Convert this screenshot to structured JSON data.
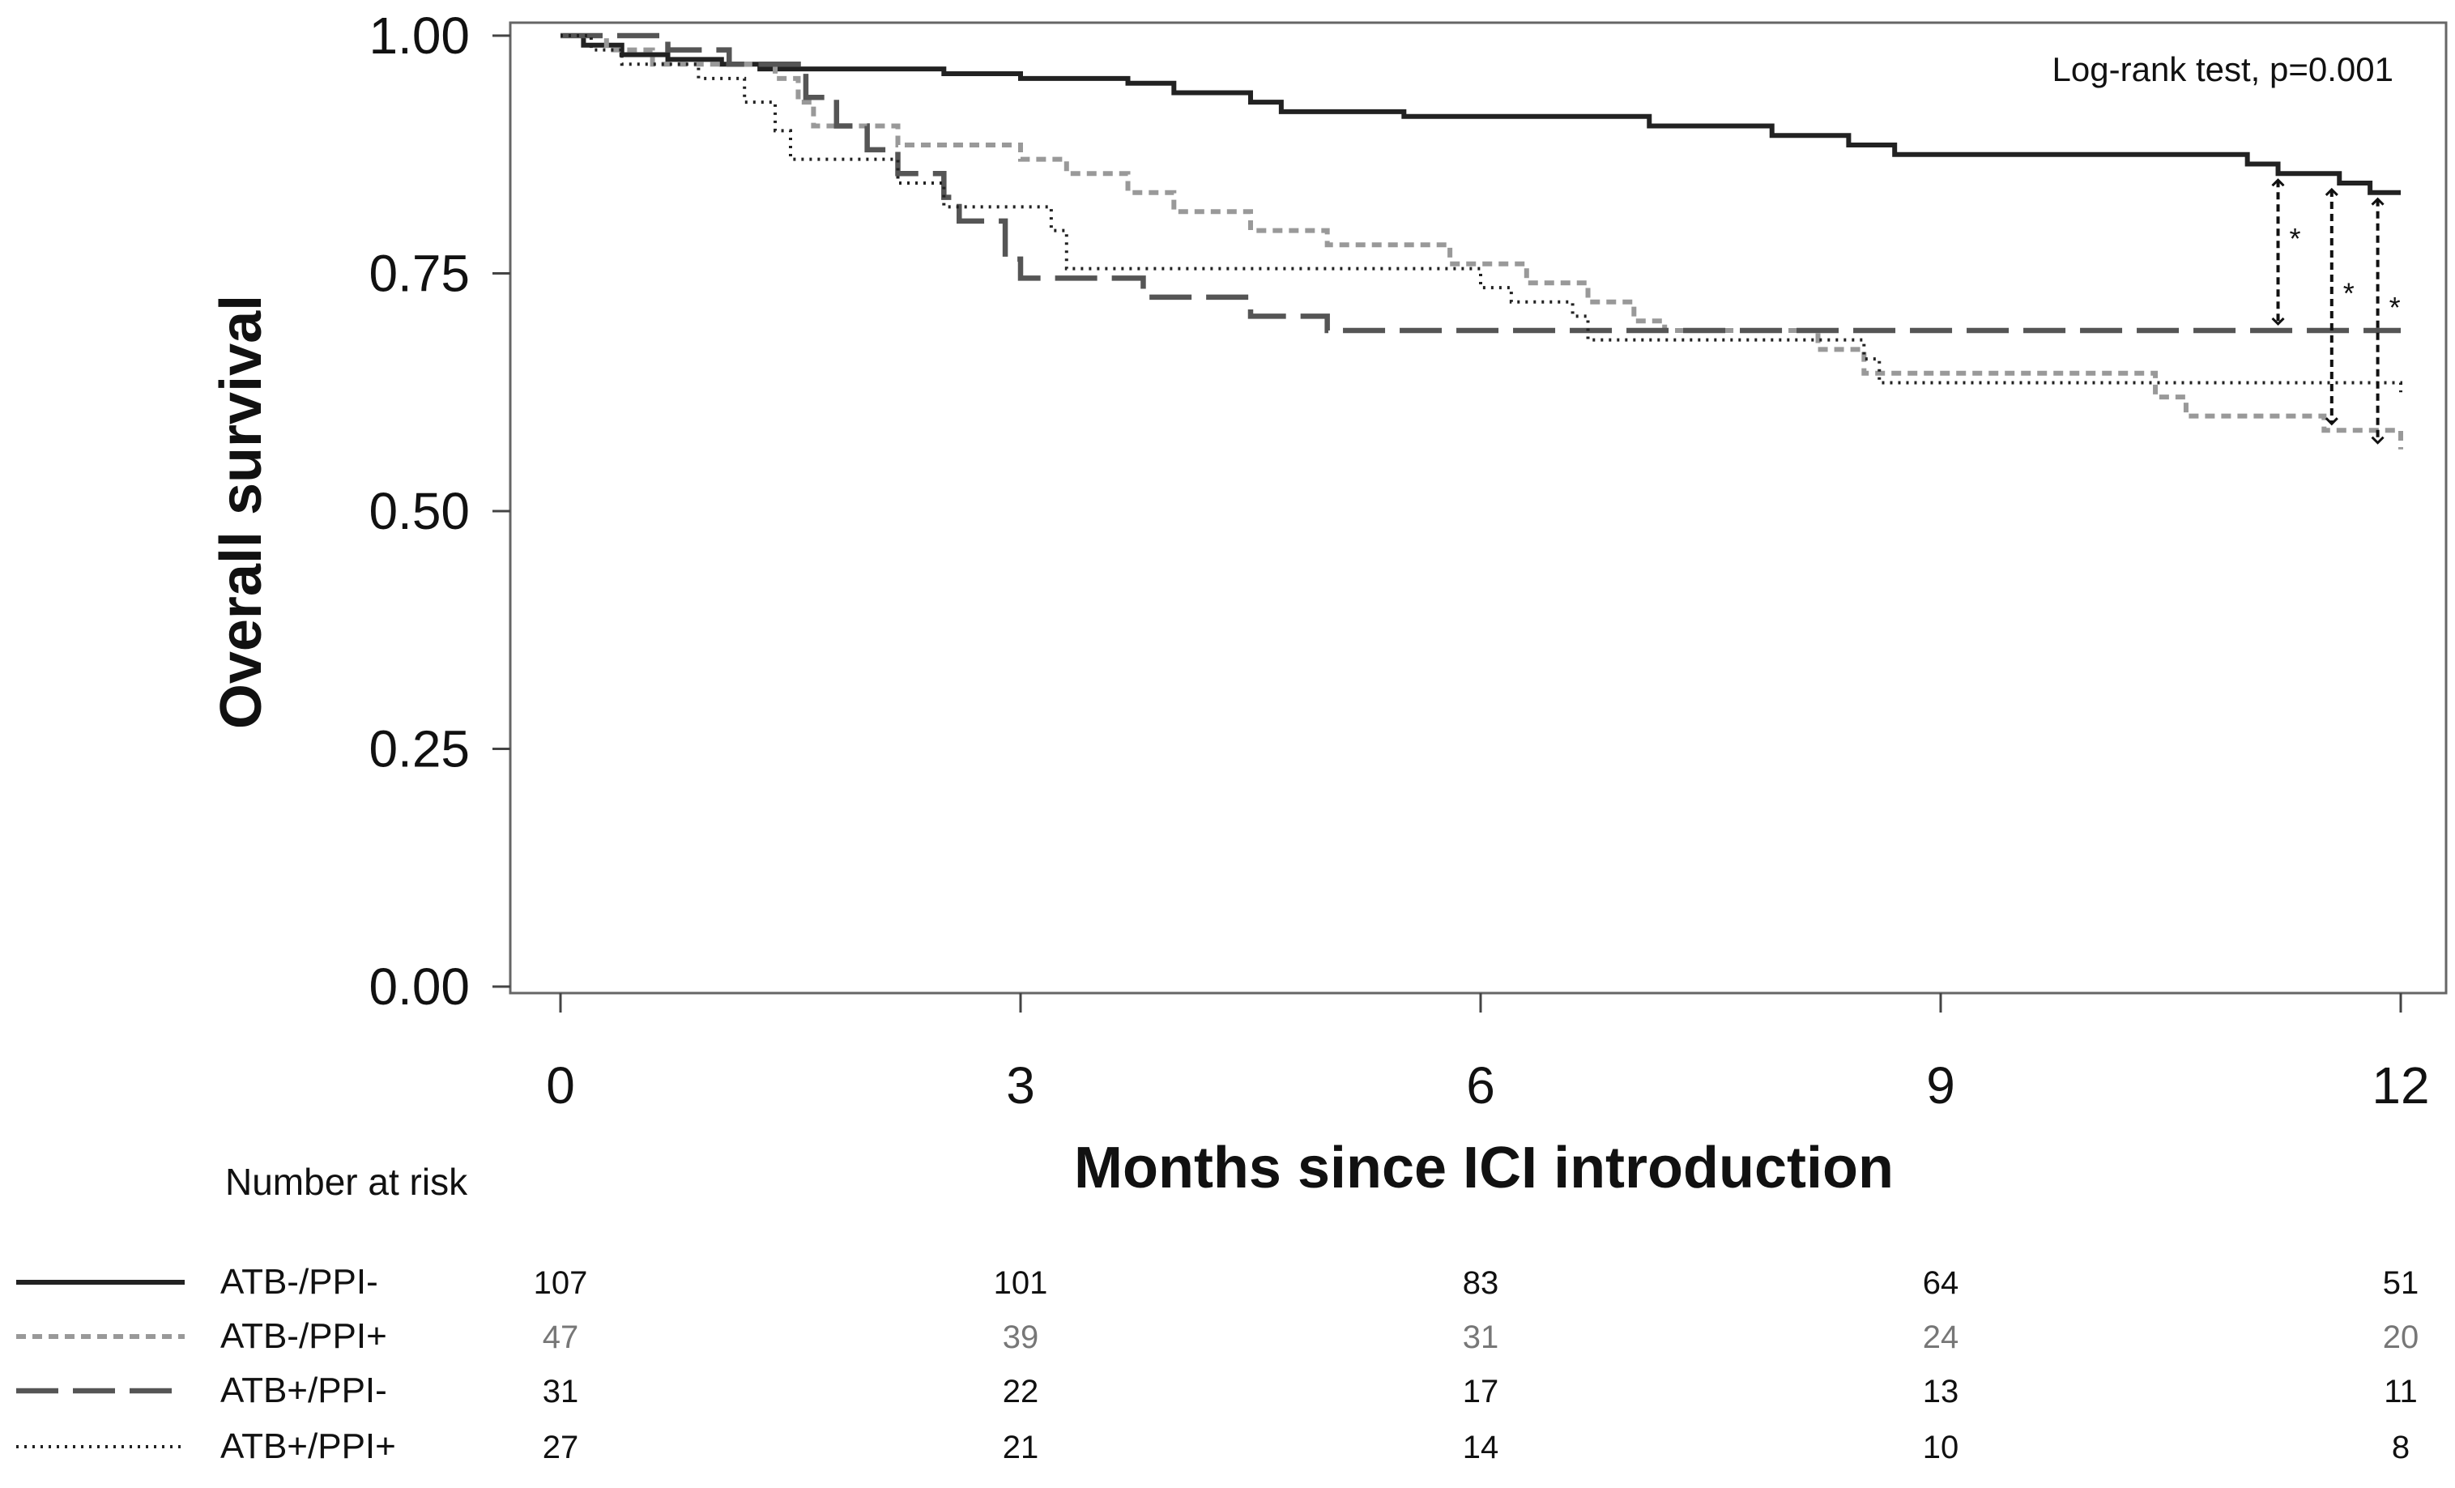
{
  "chart_data": {
    "type": "line",
    "subtype": "kaplan-meier",
    "title": "",
    "xlabel": "Months since ICI introduction",
    "ylabel": "Overall survival",
    "xlim": [
      0,
      12
    ],
    "ylim": [
      0,
      1
    ],
    "x_ticks": [
      "0",
      "3",
      "6",
      "9",
      "12"
    ],
    "y_ticks": [
      "0.00",
      "0.25",
      "0.50",
      "0.75",
      "1.00"
    ],
    "annotation": "Log-rank test, p=0.001",
    "significance_marker": "*",
    "grid": false,
    "series": [
      {
        "name": "ATB-/PPI-",
        "color": "#222222",
        "style": "solid",
        "steps": [
          [
            0,
            1.0
          ],
          [
            0.15,
            0.99
          ],
          [
            0.4,
            0.98
          ],
          [
            0.7,
            0.975
          ],
          [
            1.05,
            0.97
          ],
          [
            1.3,
            0.965
          ],
          [
            2.5,
            0.96
          ],
          [
            3.0,
            0.955
          ],
          [
            3.7,
            0.95
          ],
          [
            4.0,
            0.94
          ],
          [
            4.5,
            0.93
          ],
          [
            4.7,
            0.92
          ],
          [
            5.5,
            0.915
          ],
          [
            7.1,
            0.905
          ],
          [
            7.9,
            0.895
          ],
          [
            8.4,
            0.885
          ],
          [
            8.7,
            0.875
          ],
          [
            11.0,
            0.865
          ],
          [
            11.2,
            0.855
          ],
          [
            11.6,
            0.845
          ],
          [
            11.8,
            0.835
          ],
          [
            12.0,
            0.835
          ]
        ]
      },
      {
        "name": "ATB-/PPI+",
        "color": "#999999",
        "style": "dashed",
        "steps": [
          [
            0,
            1.0
          ],
          [
            0.3,
            0.985
          ],
          [
            0.6,
            0.97
          ],
          [
            1.4,
            0.955
          ],
          [
            1.55,
            0.93
          ],
          [
            1.65,
            0.905
          ],
          [
            2.2,
            0.885
          ],
          [
            3.0,
            0.87
          ],
          [
            3.3,
            0.855
          ],
          [
            3.7,
            0.835
          ],
          [
            4.0,
            0.815
          ],
          [
            4.5,
            0.795
          ],
          [
            5.0,
            0.78
          ],
          [
            5.8,
            0.76
          ],
          [
            6.3,
            0.74
          ],
          [
            6.7,
            0.72
          ],
          [
            7.0,
            0.7
          ],
          [
            7.2,
            0.69
          ],
          [
            8.2,
            0.67
          ],
          [
            8.5,
            0.645
          ],
          [
            10.4,
            0.62
          ],
          [
            10.6,
            0.6
          ],
          [
            11.5,
            0.585
          ],
          [
            12.0,
            0.565
          ]
        ]
      },
      {
        "name": "ATB+/PPI-",
        "color": "#555555",
        "style": "long-dashed",
        "steps": [
          [
            0,
            1.0
          ],
          [
            0.7,
            0.985
          ],
          [
            1.1,
            0.97
          ],
          [
            1.6,
            0.935
          ],
          [
            1.8,
            0.905
          ],
          [
            2.0,
            0.88
          ],
          [
            2.2,
            0.855
          ],
          [
            2.5,
            0.83
          ],
          [
            2.6,
            0.805
          ],
          [
            2.9,
            0.765
          ],
          [
            3.0,
            0.745
          ],
          [
            3.8,
            0.725
          ],
          [
            4.5,
            0.705
          ],
          [
            5.0,
            0.69
          ],
          [
            12.0,
            0.69
          ]
        ]
      },
      {
        "name": "ATB+/PPI+",
        "color": "#222222",
        "style": "dotted",
        "steps": [
          [
            0,
            1.0
          ],
          [
            0.2,
            0.985
          ],
          [
            0.4,
            0.97
          ],
          [
            0.9,
            0.955
          ],
          [
            1.2,
            0.93
          ],
          [
            1.4,
            0.9
          ],
          [
            1.5,
            0.87
          ],
          [
            2.2,
            0.845
          ],
          [
            2.5,
            0.82
          ],
          [
            3.2,
            0.795
          ],
          [
            3.3,
            0.755
          ],
          [
            6.0,
            0.735
          ],
          [
            6.2,
            0.72
          ],
          [
            6.6,
            0.705
          ],
          [
            6.7,
            0.68
          ],
          [
            8.5,
            0.66
          ],
          [
            8.6,
            0.635
          ],
          [
            12.0,
            0.625
          ]
        ]
      }
    ],
    "risk_table": {
      "title": "Number at risk",
      "times": [
        0,
        3,
        6,
        9,
        12
      ],
      "rows": [
        {
          "name": "ATB-/PPI-",
          "values": [
            "107",
            "101",
            "83",
            "64",
            "51"
          ]
        },
        {
          "name": "ATB-/PPI+",
          "values": [
            "47",
            "39",
            "31",
            "24",
            "20"
          ]
        },
        {
          "name": "ATB+/PPI-",
          "values": [
            "31",
            "22",
            "17",
            "13",
            "11"
          ]
        },
        {
          "name": "ATB+/PPI+",
          "values": [
            "27",
            "21",
            "14",
            "10",
            "8"
          ]
        }
      ]
    },
    "comparisons": [
      {
        "x": 11.2,
        "from": 0.855,
        "to": 0.69
      },
      {
        "x": 11.55,
        "from": 0.845,
        "to": 0.585
      },
      {
        "x": 11.85,
        "from": 0.835,
        "to": 0.565
      }
    ]
  }
}
